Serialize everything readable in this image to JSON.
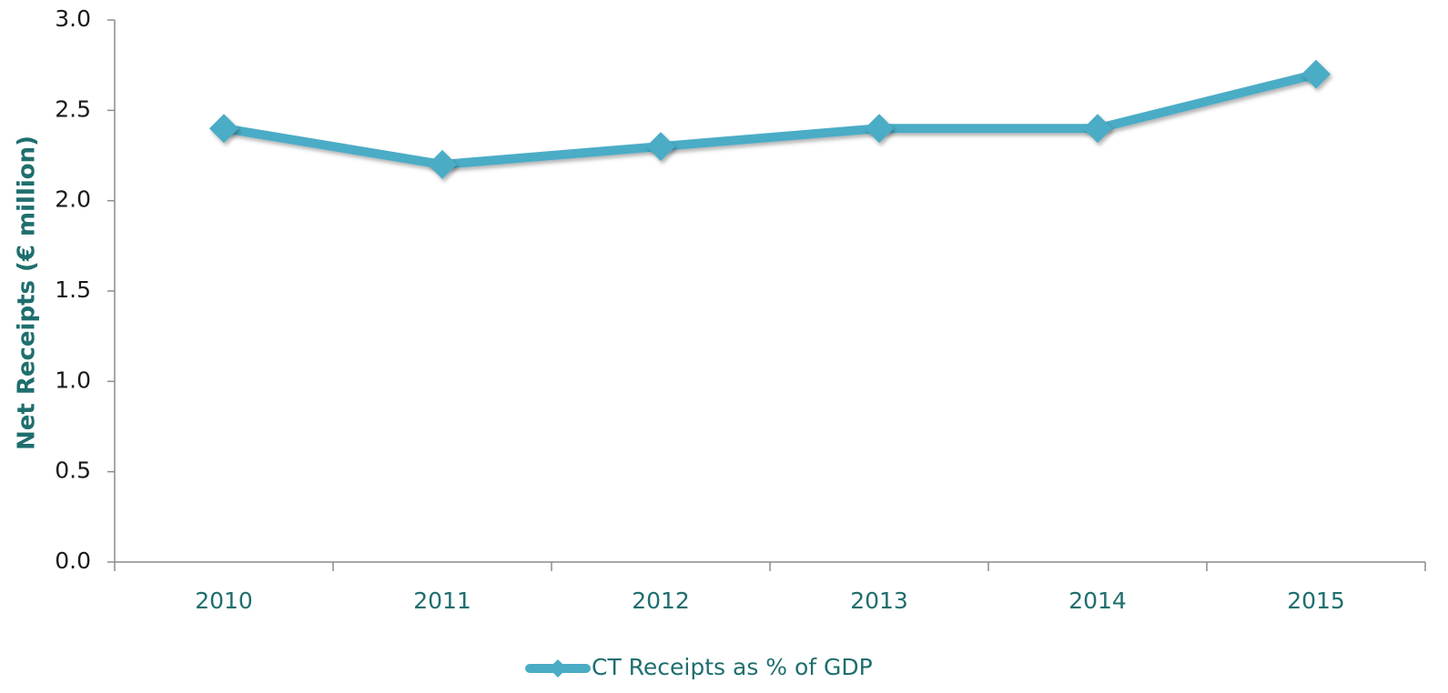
{
  "chart_data": {
    "type": "line",
    "ylabel": "Net Receipts (€ million)",
    "categories": [
      "2010",
      "2011",
      "2012",
      "2013",
      "2014",
      "2015"
    ],
    "series": [
      {
        "name": "CT Receipts as % of GDP",
        "color": "#4bacc6",
        "values": [
          2.4,
          2.2,
          2.3,
          2.4,
          2.4,
          2.7
        ]
      }
    ],
    "ylim": [
      0,
      3
    ],
    "yticks": [
      {
        "value": 0,
        "label": "0.0"
      },
      0.5,
      {
        "value": 1,
        "label": "1.0"
      },
      1.5,
      {
        "value": 2,
        "label": "2.0"
      },
      2.5,
      {
        "value": 3,
        "label": "3.0"
      }
    ],
    "grid": false,
    "legend": "bottom"
  }
}
